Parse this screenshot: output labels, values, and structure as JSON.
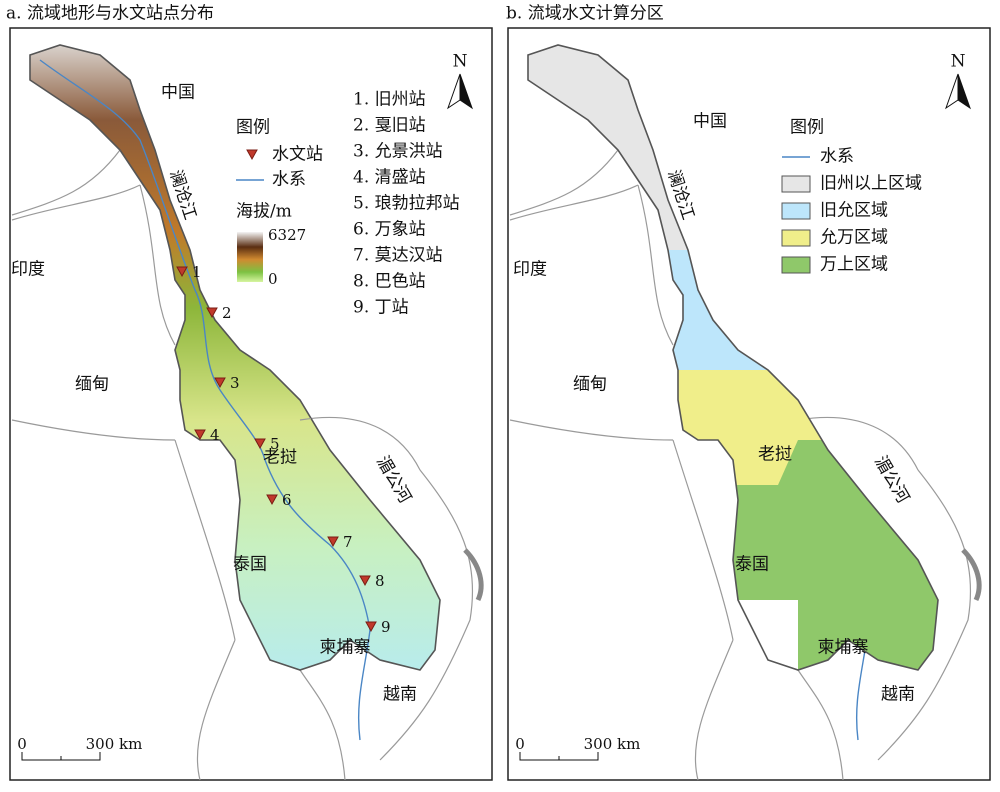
{
  "panels": [
    {
      "title": "a. 流域地形与水文站点分布",
      "north": "N",
      "countries": [
        "中国",
        "印度",
        "缅甸",
        "老挝",
        "泰国",
        "柬埔寨",
        "越南"
      ],
      "rivers": [
        "澜沧江",
        "湄公河"
      ],
      "legend": {
        "title": "图例",
        "items": [
          "水文站",
          "水系"
        ],
        "elevation_title": "海拔/m",
        "elevation_max": 6327,
        "elevation_min": 0
      },
      "stations": [
        "1. 旧州站",
        "2. 戛旧站",
        "3. 允景洪站",
        "4. 清盛站",
        "5. 琅勃拉邦站",
        "6. 万象站",
        "7. 莫达汉站",
        "8. 巴色站",
        "9. 丁站"
      ],
      "station_numbers": [
        1,
        2,
        3,
        4,
        5,
        6,
        7,
        8,
        9
      ],
      "scale": {
        "start": 0,
        "end": "300 km"
      }
    },
    {
      "title": "b. 流域水文计算分区",
      "north": "N",
      "countries": [
        "中国",
        "印度",
        "缅甸",
        "老挝",
        "泰国",
        "柬埔寨",
        "越南"
      ],
      "rivers": [
        "澜沧江",
        "湄公河"
      ],
      "legend": {
        "title": "图例",
        "items": [
          "水系",
          "旧州以上区域",
          "旧允区域",
          "允万区域",
          "万上区域"
        ]
      },
      "scale": {
        "start": 0,
        "end": "300 km"
      }
    }
  ]
}
